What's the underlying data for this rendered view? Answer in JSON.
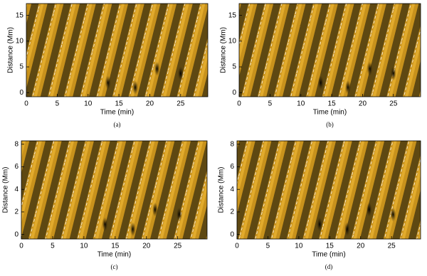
{
  "chart_data": [
    {
      "type": "image",
      "caption": "(a)",
      "xlabel": "Time (min)",
      "ylabel": "Distance (Mm)",
      "xlim": [
        0,
        29.4
      ],
      "ylim": [
        -0.8,
        17.3
      ],
      "xticks": [
        0,
        5,
        10,
        15,
        20,
        25
      ],
      "yticks": [
        0,
        5,
        10,
        15
      ]
    },
    {
      "type": "image",
      "caption": "(b)",
      "xlabel": "Time (min)",
      "ylabel": "Distance (Mm)",
      "xlim": [
        0,
        29.4
      ],
      "ylim": [
        -0.8,
        17.3
      ],
      "xticks": [
        0,
        5,
        10,
        15,
        20,
        25
      ],
      "yticks": [
        0,
        5,
        10,
        15
      ]
    },
    {
      "type": "image",
      "caption": "(c)",
      "xlabel": "Time (min)",
      "ylabel": "Distance (Mm)",
      "xlim": [
        0,
        29.7
      ],
      "ylim": [
        -0.4,
        8.3
      ],
      "xticks": [
        0,
        5,
        10,
        15,
        20,
        25
      ],
      "yticks": [
        0,
        2,
        4,
        6,
        8
      ]
    },
    {
      "type": "image",
      "caption": "(d)",
      "xlabel": "Time (min)",
      "ylabel": "Distance (Mm)",
      "xlim": [
        0,
        29.7
      ],
      "ylim": [
        -0.4,
        8.3
      ],
      "xticks": [
        0,
        5,
        10,
        15,
        20,
        25
      ],
      "yticks": [
        0,
        2,
        4,
        6,
        8
      ]
    }
  ]
}
